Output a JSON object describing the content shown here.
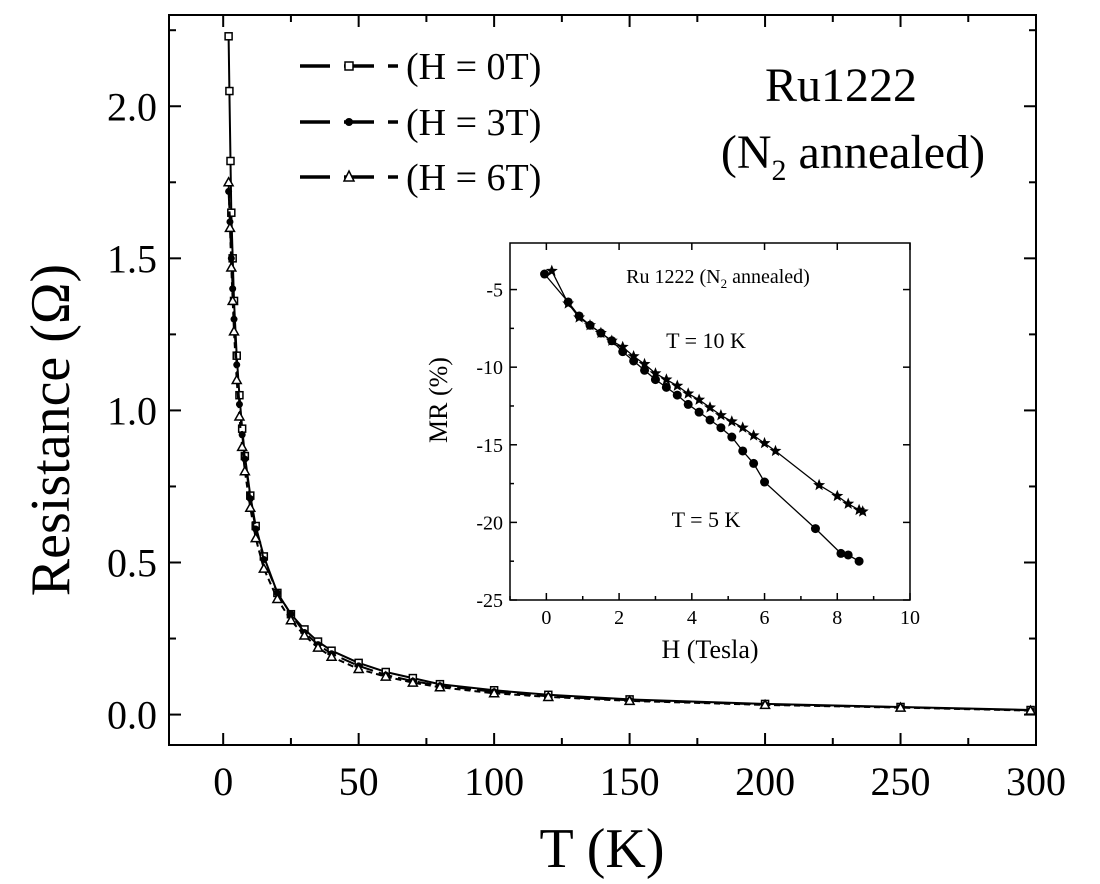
{
  "chart_data": [
    {
      "type": "line",
      "title": "Ru1222",
      "subtitle": {
        "prefix": "(N",
        "sub": "2",
        "suffix": " annealed)"
      },
      "xlabel": "T (K)",
      "ylabel": "Resistance (Ω)",
      "xlim": [
        -20,
        300
      ],
      "ylim": [
        -0.1,
        2.3
      ],
      "xticks": [
        0,
        50,
        100,
        150,
        200,
        250,
        300
      ],
      "yticks": [
        0.0,
        0.5,
        1.0,
        1.5,
        2.0
      ],
      "xtick_labels": [
        "0",
        "50",
        "100",
        "150",
        "200",
        "250",
        "300"
      ],
      "ytick_labels": [
        "0.0",
        "0.5",
        "1.0",
        "1.5",
        "2.0"
      ],
      "grid": false,
      "legend_position": "top-left",
      "series": [
        {
          "name": "(H = 0T)",
          "marker": "square",
          "x": [
            2,
            2.3,
            2.7,
            3,
            3.5,
            4,
            5,
            6,
            7,
            8,
            10,
            12,
            15,
            20,
            25,
            30,
            35,
            40,
            50,
            60,
            70,
            80,
            100,
            120,
            150,
            200,
            250,
            298
          ],
          "y": [
            2.23,
            2.05,
            1.82,
            1.65,
            1.5,
            1.36,
            1.18,
            1.05,
            0.94,
            0.85,
            0.72,
            0.62,
            0.52,
            0.4,
            0.33,
            0.28,
            0.24,
            0.21,
            0.17,
            0.14,
            0.12,
            0.1,
            0.08,
            0.065,
            0.05,
            0.035,
            0.025,
            0.015
          ]
        },
        {
          "name": "(H = 3T)",
          "marker": "circle",
          "x": [
            2,
            2.5,
            3,
            3.5,
            4,
            5,
            6,
            7,
            8,
            10,
            12,
            15,
            20,
            25,
            30,
            35,
            40,
            50,
            60,
            70,
            80,
            100,
            120,
            150,
            200,
            250,
            298
          ],
          "y": [
            1.72,
            1.62,
            1.5,
            1.4,
            1.3,
            1.15,
            1.02,
            0.92,
            0.84,
            0.71,
            0.61,
            0.51,
            0.4,
            0.33,
            0.27,
            0.23,
            0.2,
            0.16,
            0.13,
            0.11,
            0.095,
            0.075,
            0.06,
            0.047,
            0.033,
            0.024,
            0.014
          ]
        },
        {
          "name": "(H = 6T)",
          "marker": "triangle",
          "x": [
            2,
            2.5,
            3,
            3.5,
            4,
            5,
            6,
            7,
            8,
            10,
            12,
            15,
            20,
            25,
            30,
            35,
            40,
            50,
            60,
            70,
            80,
            100,
            120,
            150,
            200,
            250,
            298
          ],
          "y": [
            1.75,
            1.6,
            1.47,
            1.36,
            1.26,
            1.1,
            0.98,
            0.88,
            0.8,
            0.68,
            0.58,
            0.48,
            0.38,
            0.31,
            0.26,
            0.22,
            0.19,
            0.15,
            0.125,
            0.105,
            0.09,
            0.07,
            0.058,
            0.045,
            0.032,
            0.023,
            0.013
          ]
        }
      ]
    },
    {
      "type": "line",
      "title": {
        "prefix": "Ru 1222 (N",
        "sub": "2",
        "suffix": " annealed)"
      },
      "xlabel": "H (Tesla)",
      "ylabel": "MR (%)",
      "xlim": [
        -1,
        10
      ],
      "ylim": [
        -25,
        -2
      ],
      "xticks": [
        0,
        2,
        4,
        6,
        8,
        10
      ],
      "yticks": [
        -5,
        -10,
        -15,
        -20,
        -25
      ],
      "xtick_labels": [
        "0",
        "2",
        "4",
        "6",
        "8",
        "10"
      ],
      "ytick_labels": [
        "-5",
        "-10",
        "-15",
        "-20",
        "-25"
      ],
      "grid": false,
      "annotations": [
        {
          "text": "T = 10 K",
          "x": 4.2,
          "y": -8.6
        },
        {
          "text": "T = 5 K",
          "x": 4.8,
          "y": -21.3
        }
      ],
      "series": [
        {
          "label": "T = 10 K",
          "marker": "star",
          "x": [
            0.15,
            0.6,
            0.9,
            1.2,
            1.5,
            1.8,
            2.1,
            2.4,
            2.7,
            3.0,
            3.3,
            3.6,
            3.9,
            4.2,
            4.5,
            4.8,
            5.1,
            5.4,
            5.7,
            6.0,
            6.3,
            7.5,
            8.0,
            8.3,
            8.6,
            8.7
          ],
          "y": [
            -3.8,
            -5.9,
            -6.8,
            -7.3,
            -7.8,
            -8.3,
            -8.7,
            -9.3,
            -9.8,
            -10.4,
            -10.8,
            -11.2,
            -11.7,
            -12.1,
            -12.6,
            -13.1,
            -13.5,
            -13.9,
            -14.4,
            -14.9,
            -15.4,
            -17.6,
            -18.3,
            -18.8,
            -19.2,
            -19.3
          ]
        },
        {
          "label": "T = 5 K",
          "marker": "circle",
          "x": [
            -0.05,
            0.6,
            0.9,
            1.2,
            1.5,
            1.8,
            2.1,
            2.4,
            2.7,
            3.0,
            3.3,
            3.6,
            3.9,
            4.2,
            4.5,
            4.8,
            5.1,
            5.4,
            5.7,
            6.0,
            7.4,
            8.1,
            8.3,
            8.6
          ],
          "y": [
            -4.0,
            -5.8,
            -6.7,
            -7.3,
            -7.8,
            -8.3,
            -9.0,
            -9.6,
            -10.2,
            -10.8,
            -11.3,
            -11.8,
            -12.4,
            -12.9,
            -13.4,
            -13.9,
            -14.5,
            -15.4,
            -16.2,
            -17.4,
            -20.4,
            -22.0,
            -22.1,
            -22.5
          ]
        }
      ]
    }
  ]
}
